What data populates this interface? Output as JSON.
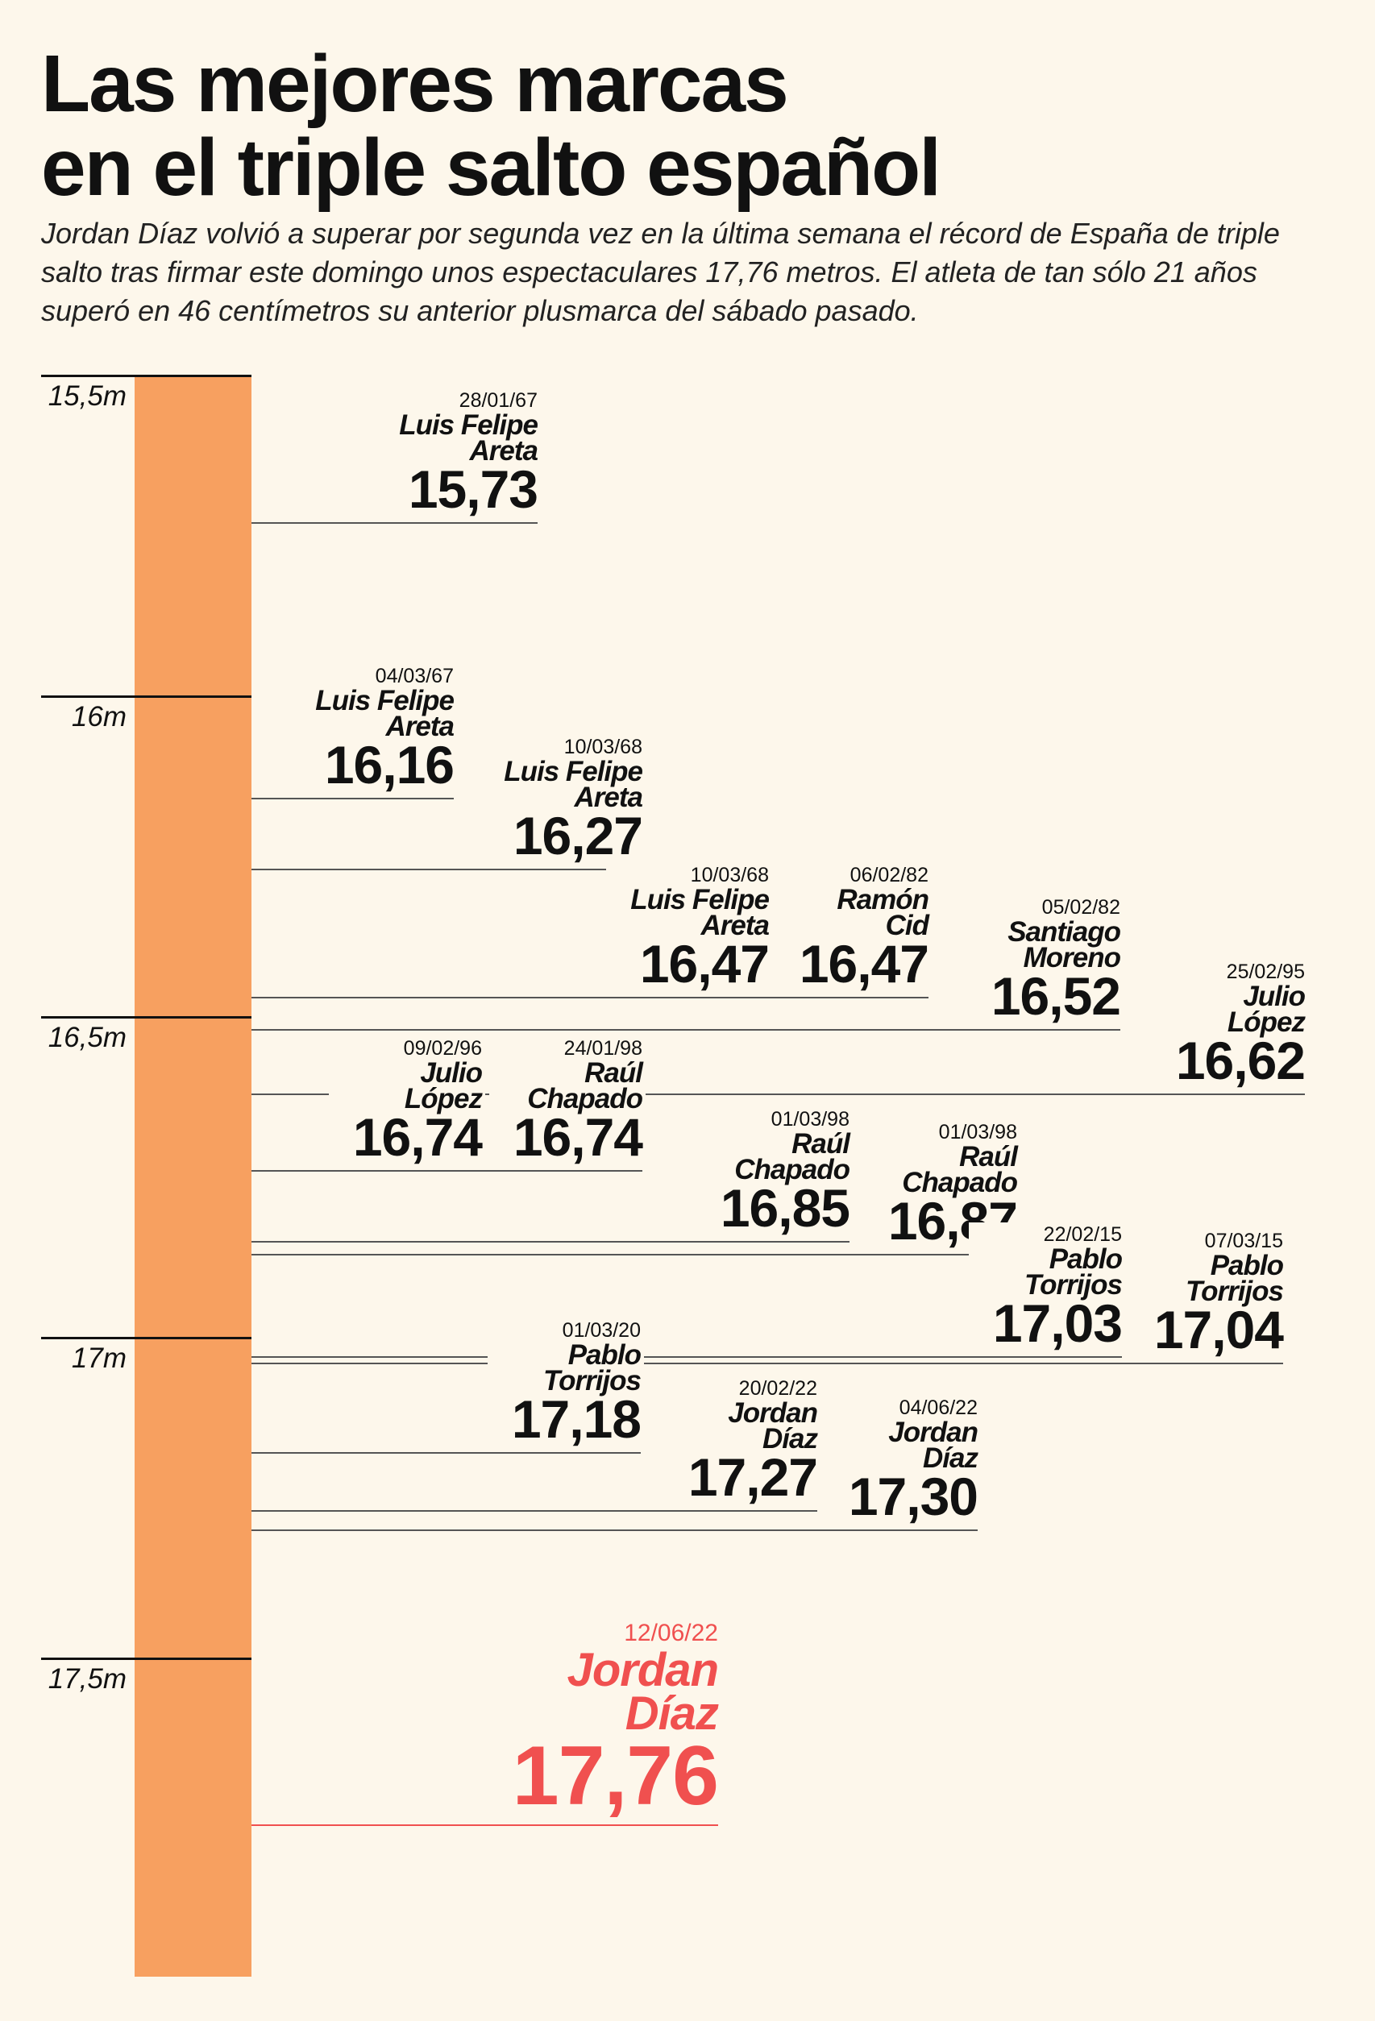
{
  "title_lines": [
    "Las mejores marcas",
    "en el triple salto español"
  ],
  "subtitle": "Jordan Díaz volvió a superar por segunda vez en la última semana el récord de España de triple salto tras firmar este domingo unos espectaculares 17,76 metros. El atleta de tan sólo 21 años superó en 46 centímetros su anterior plusmarca del sábado pasado.",
  "colors": {
    "background": "#FDF7EB",
    "bar": "#F7A060",
    "highlight": "#F0504F",
    "text": "#111111"
  },
  "chart_data": {
    "type": "bar",
    "orientation": "vertical-scale",
    "ylim": [
      15.5,
      18.0
    ],
    "y_direction": "increasing-downward",
    "y_ticks": [
      15.5,
      16,
      16.5,
      17,
      17.5
    ],
    "y_tick_labels": [
      "15,5m",
      "16m",
      "16,5m",
      "17m",
      "17,5m"
    ],
    "records": [
      {
        "date": "28/01/67",
        "name": [
          "Luis Felipe",
          "Areta"
        ],
        "value": 15.73,
        "label": "15,73"
      },
      {
        "date": "04/03/67",
        "name": [
          "Luis Felipe",
          "Areta"
        ],
        "value": 16.16,
        "label": "16,16"
      },
      {
        "date": "10/03/68",
        "name": [
          "Luis Felipe",
          "Areta"
        ],
        "value": 16.27,
        "label": "16,27"
      },
      {
        "date": "10/03/68",
        "name": [
          "Luis Felipe",
          "Areta"
        ],
        "value": 16.47,
        "label": "16,47"
      },
      {
        "date": "06/02/82",
        "name": [
          "Ramón",
          "Cid"
        ],
        "value": 16.47,
        "label": "16,47"
      },
      {
        "date": "05/02/82",
        "name": [
          "Santiago",
          "Moreno"
        ],
        "value": 16.52,
        "label": "16,52"
      },
      {
        "date": "25/02/95",
        "name": [
          "Julio",
          "López"
        ],
        "value": 16.62,
        "label": "16,62"
      },
      {
        "date": "09/02/96",
        "name": [
          "Julio",
          "López"
        ],
        "value": 16.74,
        "label": "16,74"
      },
      {
        "date": "24/01/98",
        "name": [
          "Raúl",
          "Chapado"
        ],
        "value": 16.74,
        "label": "16,74"
      },
      {
        "date": "01/03/98",
        "name": [
          "Raúl",
          "Chapado"
        ],
        "value": 16.85,
        "label": "16,85"
      },
      {
        "date": "01/03/98",
        "name": [
          "Raúl",
          "Chapado"
        ],
        "value": 16.87,
        "label": "16,87"
      },
      {
        "date": "22/02/15",
        "name": [
          "Pablo",
          "Torrijos"
        ],
        "value": 17.03,
        "label": "17,03"
      },
      {
        "date": "07/03/15",
        "name": [
          "Pablo",
          "Torrijos"
        ],
        "value": 17.04,
        "label": "17,04"
      },
      {
        "date": "01/03/20",
        "name": [
          "Pablo",
          "Torrijos"
        ],
        "value": 17.18,
        "label": "17,18"
      },
      {
        "date": "20/02/22",
        "name": [
          "Jordan",
          "Díaz"
        ],
        "value": 17.27,
        "label": "17,27"
      },
      {
        "date": "04/06/22",
        "name": [
          "Jordan",
          "Díaz"
        ],
        "value": 17.3,
        "label": "17,30"
      },
      {
        "date": "12/06/22",
        "name": [
          "Jordan",
          "Díaz"
        ],
        "value": 17.76,
        "label": "17,76",
        "highlight": true
      }
    ]
  }
}
